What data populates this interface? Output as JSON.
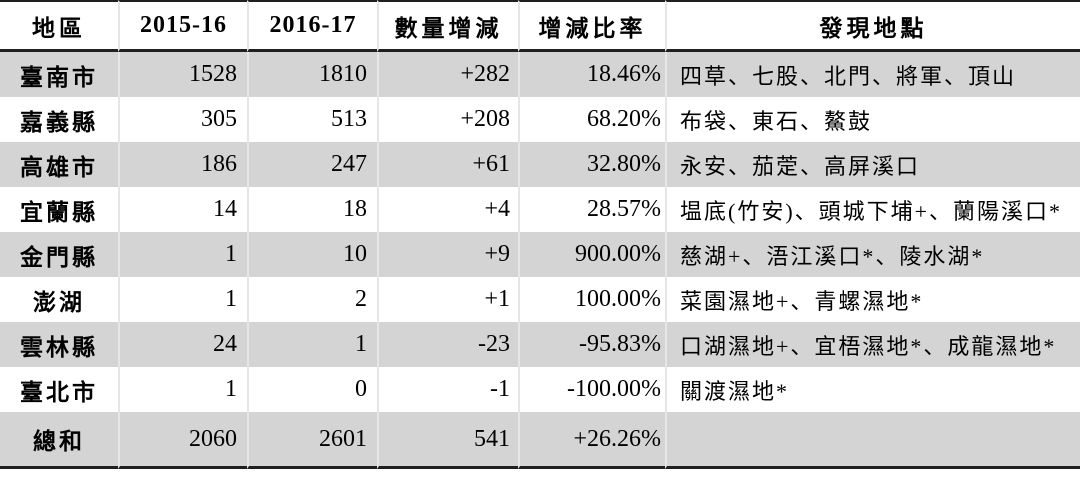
{
  "table": {
    "columns": [
      {
        "key": "region",
        "label": "地區"
      },
      {
        "key": "y2015_16",
        "label": "2015-16"
      },
      {
        "key": "y2016_17",
        "label": "2016-17"
      },
      {
        "key": "change",
        "label": "數量增減"
      },
      {
        "key": "ratio",
        "label": "增減比率"
      },
      {
        "key": "locations",
        "label": "發現地點"
      }
    ],
    "rows": [
      {
        "region": "臺南市",
        "y2015_16": "1528",
        "y2016_17": "1810",
        "change": "+282",
        "ratio": "18.46%",
        "locations": "四草、七股、北門、將軍、頂山"
      },
      {
        "region": "嘉義縣",
        "y2015_16": "305",
        "y2016_17": "513",
        "change": "+208",
        "ratio": "68.20%",
        "locations": "布袋、東石、鰲鼓"
      },
      {
        "region": "高雄市",
        "y2015_16": "186",
        "y2016_17": "247",
        "change": "+61",
        "ratio": "32.80%",
        "locations": "永安、茄萣、高屏溪口"
      },
      {
        "region": "宜蘭縣",
        "y2015_16": "14",
        "y2016_17": "18",
        "change": "+4",
        "ratio": "28.57%",
        "locations": "塭底(竹安)、頭城下埔+、蘭陽溪口*"
      },
      {
        "region": "金門縣",
        "y2015_16": "1",
        "y2016_17": "10",
        "change": "+9",
        "ratio": "900.00%",
        "locations": "慈湖+、浯江溪口*、陵水湖*"
      },
      {
        "region": "澎湖",
        "y2015_16": "1",
        "y2016_17": "2",
        "change": "+1",
        "ratio": "100.00%",
        "locations": "菜園濕地+、青螺濕地*"
      },
      {
        "region": "雲林縣",
        "y2015_16": "24",
        "y2016_17": "1",
        "change": "-23",
        "ratio": "-95.83%",
        "locations": "口湖濕地+、宜梧濕地*、成龍濕地*"
      },
      {
        "region": "臺北市",
        "y2015_16": "1",
        "y2016_17": "0",
        "change": "-1",
        "ratio": "-100.00%",
        "locations": "關渡濕地*"
      },
      {
        "region": "總和",
        "y2015_16": "2060",
        "y2016_17": "2601",
        "change": "541",
        "ratio": "+26.26%",
        "locations": ""
      }
    ],
    "colors": {
      "stripe": "#d4d4d4",
      "border": "#1f1f1f",
      "gridline": "#e6e6e6"
    }
  }
}
